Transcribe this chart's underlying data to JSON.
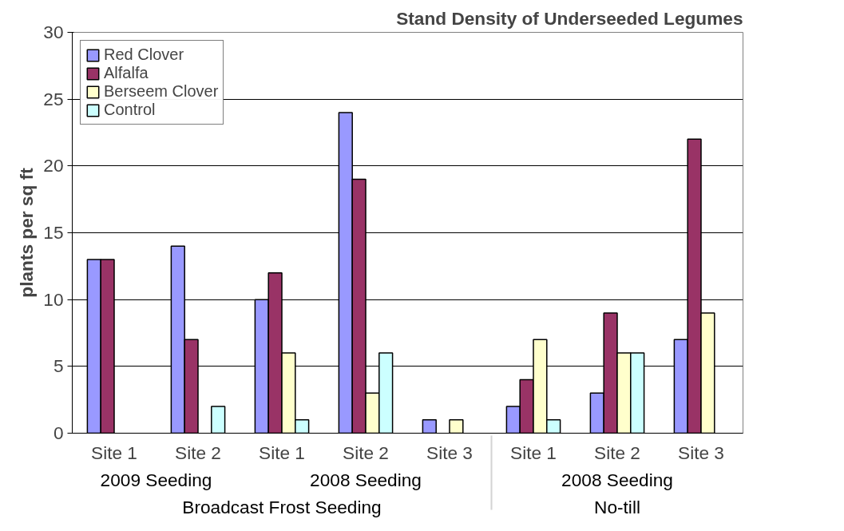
{
  "chart_data": {
    "type": "bar",
    "title": "Stand Density of Underseeded Legumes",
    "ylabel": "plants per sq ft",
    "categories": [
      "Site 1",
      "Site 2",
      "Site 1",
      "Site 2",
      "Site 3",
      "Site 1",
      "Site 2",
      "Site 3"
    ],
    "annotations": [
      "2009 Seeding",
      "2008 Seeding",
      "2008 Seeding",
      "Broadcast Frost Seeding",
      "No-till"
    ],
    "series": [
      {
        "name": "Red Clover",
        "color": "#9999ff",
        "values": [
          13,
          14,
          10,
          24,
          1,
          2,
          3,
          7
        ]
      },
      {
        "name": "Alfalfa",
        "color": "#993366",
        "values": [
          13,
          7,
          12,
          19,
          null,
          4,
          9,
          22
        ]
      },
      {
        "name": "Berseem Clover",
        "color": "#ffffcc",
        "values": [
          null,
          null,
          6,
          3,
          1,
          7,
          6,
          9
        ]
      },
      {
        "name": "Control",
        "color": "#ccffff",
        "values": [
          null,
          2,
          1,
          6,
          null,
          1,
          6,
          null
        ]
      }
    ],
    "ylim": [
      0,
      30
    ],
    "yticks": [
      0,
      5,
      10,
      15,
      20,
      25,
      30
    ],
    "grid": "y",
    "legend": "top left"
  }
}
